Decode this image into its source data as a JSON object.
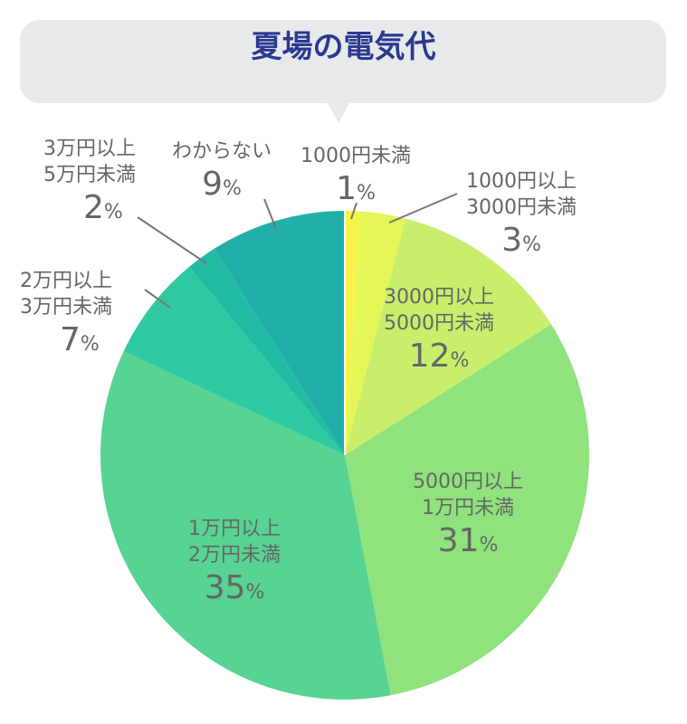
{
  "chart_data": {
    "type": "pie",
    "title": "夏場の電気代",
    "slices": [
      {
        "label": "1000円未満",
        "value": 1,
        "color": "#f9f24a"
      },
      {
        "label": "1000円以上 3000円未満",
        "value": 3,
        "color": "#e4f757"
      },
      {
        "label": "3000円以上 5000円未満",
        "value": 12,
        "color": "#c8ee6c"
      },
      {
        "label": "5000円以上 1万円未満",
        "value": 31,
        "color": "#8fe27c"
      },
      {
        "label": "1万円以上 2万円未満",
        "value": 35,
        "color": "#57d393"
      },
      {
        "label": "2万円以上 3万円未満",
        "value": 7,
        "color": "#2ec9a0"
      },
      {
        "label": "3万円以上 5万円未満",
        "value": 2,
        "color": "#22bca5"
      },
      {
        "label": "わからない",
        "value": 9,
        "color": "#22afaa"
      }
    ],
    "labels": [
      {
        "l1": "1000円未満",
        "l2": "",
        "n": "1",
        "u": "%"
      },
      {
        "l1": "1000円以上",
        "l2": "3000円未満",
        "n": "3",
        "u": "%"
      },
      {
        "l1": "3000円以上",
        "l2": "5000円未満",
        "n": "12",
        "u": "%"
      },
      {
        "l1": "5000円以上",
        "l2": "1万円未満",
        "n": "31",
        "u": "%"
      },
      {
        "l1": "1万円以上",
        "l2": "2万円未満",
        "n": "35",
        "u": "%"
      },
      {
        "l1": "2万円以上",
        "l2": "3万円未満",
        "n": "7",
        "u": "%"
      },
      {
        "l1": "3万円以上",
        "l2": "5万円未満",
        "n": "2",
        "u": "%"
      },
      {
        "l1": "わからない",
        "l2": "",
        "n": "9",
        "u": "%"
      }
    ]
  }
}
